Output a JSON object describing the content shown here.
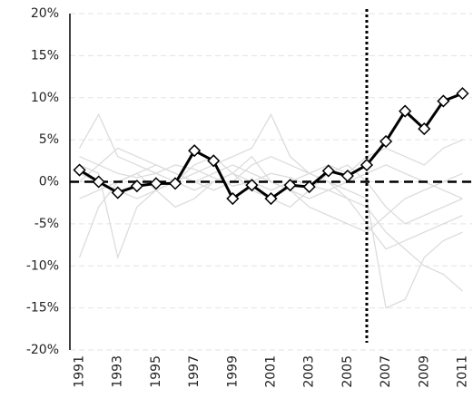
{
  "chart_data": {
    "type": "line",
    "x": [
      1991,
      1992,
      1993,
      1994,
      1995,
      1996,
      1997,
      1998,
      1999,
      2000,
      2001,
      2002,
      2003,
      2004,
      2005,
      2006,
      2007,
      2008,
      2009,
      2010,
      2011
    ],
    "xlim": [
      1990.5,
      2011.5
    ],
    "xticks": [
      1991,
      1993,
      1995,
      1997,
      1999,
      2001,
      2003,
      2005,
      2007,
      2009,
      2011
    ],
    "ylim": [
      -20,
      20
    ],
    "yticks": [
      {
        "value": -20,
        "label": "-20%"
      },
      {
        "value": -15,
        "label": "-15%"
      },
      {
        "value": -10,
        "label": "-10%"
      },
      {
        "value": -5,
        "label": "-5%"
      },
      {
        "value": 0,
        "label": "0%"
      },
      {
        "value": 5,
        "label": "5%"
      },
      {
        "value": 10,
        "label": "10%"
      },
      {
        "value": 15,
        "label": "15%"
      },
      {
        "value": 20,
        "label": "20%"
      }
    ],
    "grid": true,
    "reference_lines": {
      "y": 0,
      "x": 2006
    },
    "series": [
      {
        "color": "#dcdcdc",
        "values": [
          3,
          2,
          1,
          0.5,
          1,
          2,
          1.5,
          0.5,
          -0.5,
          0,
          1,
          0.5,
          -0.5,
          -1,
          -2,
          -3,
          -6,
          -8,
          -10,
          -11,
          -13
        ]
      },
      {
        "color": "#dcdcdc",
        "values": [
          -9,
          -3,
          0,
          1,
          2,
          1,
          0,
          -1,
          0,
          2,
          3,
          2,
          1,
          0,
          -1,
          -2,
          -15,
          -14,
          -9,
          -7,
          -6
        ]
      },
      {
        "color": "#dcdcdc",
        "values": [
          4,
          8,
          3,
          2,
          1,
          0,
          -1,
          0,
          1,
          0,
          -1,
          0,
          1,
          2,
          1,
          3,
          4,
          3,
          2,
          4,
          5
        ]
      },
      {
        "color": "#dcdcdc",
        "values": [
          2,
          1,
          -9,
          -3,
          -1,
          0,
          1,
          2,
          3,
          4,
          8,
          3,
          1,
          0,
          -2,
          -5,
          -8,
          -7,
          -6,
          -5,
          -4
        ]
      },
      {
        "color": "#dcdcdc",
        "values": [
          -2,
          -1,
          0,
          1,
          -1,
          -3,
          -2,
          0,
          1,
          3,
          0,
          -1,
          -2,
          -1,
          0,
          1,
          2,
          1,
          0,
          -1,
          -2
        ]
      },
      {
        "color": "#dcdcdc",
        "values": [
          0,
          2,
          4,
          3,
          2,
          1,
          0,
          1,
          2,
          1,
          0,
          -1,
          -3,
          -4,
          -5,
          -6,
          -4,
          -2,
          -1,
          0,
          1
        ]
      },
      {
        "color": "#dcdcdc",
        "values": [
          1,
          0,
          -1,
          -2,
          -1,
          0,
          2,
          3,
          1,
          -1,
          -2,
          -3,
          -1,
          1,
          2,
          0,
          -3,
          -5,
          -4,
          -3,
          -2
        ]
      },
      {
        "color": "#000000",
        "marker": "diamond",
        "values": [
          1.4,
          0,
          -1.3,
          -0.5,
          -0.2,
          -0.2,
          3.7,
          2.5,
          -2.0,
          -0.4,
          -2.0,
          -0.4,
          -0.6,
          1.3,
          0.7,
          2.0,
          4.8,
          8.4,
          6.3,
          9.6,
          10.5
        ]
      }
    ]
  }
}
